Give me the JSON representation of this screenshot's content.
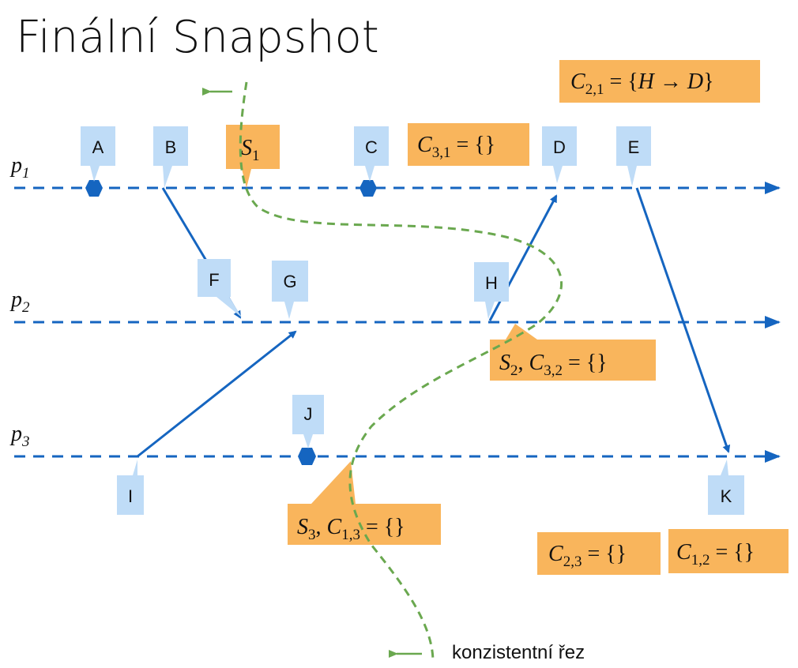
{
  "title": "Finální Snapshot",
  "colors": {
    "process_line": "#1565c0",
    "callout_blue": "#bfdcf7",
    "callout_orange": "#f9b55c",
    "cut": "#6aa84f"
  },
  "processes": [
    {
      "symbol": "p",
      "index": "1"
    },
    {
      "symbol": "p",
      "index": "2"
    },
    {
      "symbol": "p",
      "index": "3"
    }
  ],
  "events": [
    {
      "id": "A",
      "process": "p1",
      "kind": "internal"
    },
    {
      "id": "B",
      "process": "p1",
      "kind": "send"
    },
    {
      "id": "C",
      "process": "p1",
      "kind": "internal"
    },
    {
      "id": "D",
      "process": "p1",
      "kind": "receive"
    },
    {
      "id": "E",
      "process": "p1",
      "kind": "send"
    },
    {
      "id": "F",
      "process": "p2",
      "kind": "receive"
    },
    {
      "id": "G",
      "process": "p2",
      "kind": "receive"
    },
    {
      "id": "H",
      "process": "p2",
      "kind": "send"
    },
    {
      "id": "I",
      "process": "p3",
      "kind": "send"
    },
    {
      "id": "J",
      "process": "p3",
      "kind": "internal"
    },
    {
      "id": "K",
      "process": "p3",
      "kind": "receive"
    }
  ],
  "messages": [
    {
      "from": "B",
      "to": "F"
    },
    {
      "from": "I",
      "to": "G"
    },
    {
      "from": "H",
      "to": "D"
    },
    {
      "from": "E",
      "to": "K"
    }
  ],
  "notes": {
    "s1": {
      "sym": "S",
      "idx": "1"
    },
    "c31": {
      "sym": "C",
      "idx": "3,1",
      "rhs": " = {}"
    },
    "c21": {
      "sym": "C",
      "idx": "2,1",
      "lhs_rest": " = {",
      "h": "H",
      "arrow": " → ",
      "d": "D",
      "close": "}"
    },
    "s2": {
      "sym": "S",
      "idx": "2",
      "sep": ", ",
      "sym2": "C",
      "idx2": "3,2",
      "rhs": " = {}"
    },
    "s3": {
      "sym": "S",
      "idx": "3",
      "sep": ", ",
      "sym2": "C",
      "idx2": "1,3",
      "rhs": " = {}"
    },
    "c23": {
      "sym": "C",
      "idx": "2,3",
      "rhs": " = {}"
    },
    "c12": {
      "sym": "C",
      "idx": "1,2",
      "rhs": " = {}"
    }
  },
  "cut_label": "konzistentní řez"
}
